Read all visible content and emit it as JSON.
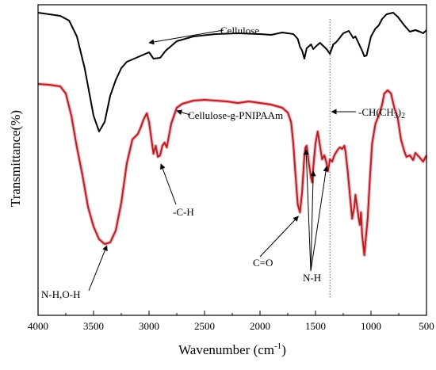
{
  "chart_data": {
    "type": "line",
    "title": "",
    "xlabel": "Wavenumber (cm",
    "xlabel_sup": "-1",
    "xlabel_end": ")",
    "ylabel": "Transmittance(%)",
    "xlim": [
      4000,
      500
    ],
    "x_reversed": true,
    "xticks": [
      "4000",
      "3500",
      "3000",
      "2500",
      "2000",
      "1500",
      "1000",
      "500"
    ],
    "grid": false,
    "reference_line": {
      "x": 1370,
      "style": "dotted"
    },
    "series": [
      {
        "name": "Cellulose",
        "color": "#000000",
        "points": [
          [
            4000,
            10
          ],
          [
            3900,
            12
          ],
          [
            3800,
            14
          ],
          [
            3720,
            20
          ],
          [
            3650,
            40
          ],
          [
            3580,
            80
          ],
          [
            3500,
            140
          ],
          [
            3450,
            160
          ],
          [
            3400,
            148
          ],
          [
            3350,
            115
          ],
          [
            3300,
            95
          ],
          [
            3250,
            80
          ],
          [
            3200,
            72
          ],
          [
            3100,
            66
          ],
          [
            3000,
            60
          ],
          [
            2960,
            68
          ],
          [
            2900,
            67
          ],
          [
            2850,
            58
          ],
          [
            2750,
            46
          ],
          [
            2600,
            40
          ],
          [
            2400,
            37
          ],
          [
            2200,
            36
          ],
          [
            2000,
            37
          ],
          [
            1900,
            38
          ],
          [
            1800,
            35
          ],
          [
            1700,
            37
          ],
          [
            1660,
            43
          ],
          [
            1640,
            53
          ],
          [
            1620,
            58
          ],
          [
            1600,
            68
          ],
          [
            1580,
            55
          ],
          [
            1540,
            50
          ],
          [
            1520,
            56
          ],
          [
            1500,
            53
          ],
          [
            1460,
            48
          ],
          [
            1430,
            52
          ],
          [
            1400,
            56
          ],
          [
            1370,
            62
          ],
          [
            1340,
            50
          ],
          [
            1320,
            48
          ],
          [
            1300,
            45
          ],
          [
            1250,
            36
          ],
          [
            1200,
            33
          ],
          [
            1160,
            42
          ],
          [
            1140,
            40
          ],
          [
            1120,
            46
          ],
          [
            1100,
            52
          ],
          [
            1080,
            58
          ],
          [
            1060,
            65
          ],
          [
            1040,
            64
          ],
          [
            1020,
            52
          ],
          [
            1000,
            40
          ],
          [
            960,
            30
          ],
          [
            930,
            26
          ],
          [
            900,
            18
          ],
          [
            860,
            12
          ],
          [
            800,
            10
          ],
          [
            760,
            15
          ],
          [
            700,
            26
          ],
          [
            650,
            34
          ],
          [
            600,
            32
          ],
          [
            560,
            34
          ],
          [
            530,
            36
          ],
          [
            500,
            32
          ]
        ]
      },
      {
        "name": "Cellulose-g-PNIPAAm",
        "color": "#b3221e",
        "halo": "#f2b8c6",
        "points": [
          [
            4000,
            100
          ],
          [
            3900,
            101
          ],
          [
            3800,
            103
          ],
          [
            3750,
            112
          ],
          [
            3700,
            140
          ],
          [
            3650,
            180
          ],
          [
            3600,
            215
          ],
          [
            3550,
            255
          ],
          [
            3500,
            280
          ],
          [
            3450,
            296
          ],
          [
            3400,
            302
          ],
          [
            3350,
            300
          ],
          [
            3300,
            285
          ],
          [
            3250,
            250
          ],
          [
            3200,
            200
          ],
          [
            3150,
            170
          ],
          [
            3100,
            163
          ],
          [
            3070,
            153
          ],
          [
            3050,
            145
          ],
          [
            3020,
            137
          ],
          [
            3000,
            148
          ],
          [
            2980,
            168
          ],
          [
            2960,
            188
          ],
          [
            2940,
            178
          ],
          [
            2920,
            192
          ],
          [
            2900,
            190
          ],
          [
            2880,
            178
          ],
          [
            2860,
            174
          ],
          [
            2840,
            180
          ],
          [
            2800,
            150
          ],
          [
            2750,
            130
          ],
          [
            2700,
            125
          ],
          [
            2600,
            121
          ],
          [
            2500,
            120
          ],
          [
            2400,
            121
          ],
          [
            2300,
            122
          ],
          [
            2200,
            124
          ],
          [
            2100,
            122
          ],
          [
            2000,
            124
          ],
          [
            1900,
            126
          ],
          [
            1800,
            130
          ],
          [
            1750,
            136
          ],
          [
            1720,
            148
          ],
          [
            1700,
            175
          ],
          [
            1680,
            215
          ],
          [
            1660,
            252
          ],
          [
            1640,
            262
          ],
          [
            1620,
            235
          ],
          [
            1600,
            190
          ],
          [
            1590,
            180
          ],
          [
            1580,
            178
          ],
          [
            1560,
            200
          ],
          [
            1540,
            218
          ],
          [
            1530,
            224
          ],
          [
            1520,
            205
          ],
          [
            1500,
            175
          ],
          [
            1480,
            160
          ],
          [
            1460,
            178
          ],
          [
            1440,
            195
          ],
          [
            1420,
            190
          ],
          [
            1400,
            200
          ],
          [
            1387,
            210
          ],
          [
            1370,
            195
          ],
          [
            1350,
            198
          ],
          [
            1330,
            190
          ],
          [
            1300,
            183
          ],
          [
            1280,
            180
          ],
          [
            1260,
            182
          ],
          [
            1240,
            178
          ],
          [
            1230,
            185
          ],
          [
            1210,
            210
          ],
          [
            1190,
            240
          ],
          [
            1170,
            270
          ],
          [
            1160,
            262
          ],
          [
            1150,
            255
          ],
          [
            1140,
            240
          ],
          [
            1130,
            250
          ],
          [
            1110,
            270
          ],
          [
            1100,
            278
          ],
          [
            1090,
            262
          ],
          [
            1080,
            290
          ],
          [
            1060,
            316
          ],
          [
            1050,
            300
          ],
          [
            1030,
            270
          ],
          [
            1010,
            220
          ],
          [
            990,
            175
          ],
          [
            960,
            150
          ],
          [
            930,
            140
          ],
          [
            900,
            126
          ],
          [
            880,
            112
          ],
          [
            850,
            108
          ],
          [
            820,
            112
          ],
          [
            790,
            130
          ],
          [
            760,
            142
          ],
          [
            730,
            170
          ],
          [
            700,
            185
          ],
          [
            680,
            192
          ],
          [
            650,
            190
          ],
          [
            620,
            196
          ],
          [
            600,
            187
          ],
          [
            560,
            193
          ],
          [
            530,
            198
          ],
          [
            500,
            190
          ]
        ]
      }
    ],
    "annotations": [
      {
        "text": "Cellulose",
        "arrow_x": 3000,
        "arrow_y": 40
      },
      {
        "text": "Cellulose-g-PNIPAAm",
        "arrow_x": 2750,
        "arrow_y": 128
      },
      {
        "text": "-CH(CH",
        "sub": "3",
        "end": ")",
        "sub2": "2",
        "arrow_x": 1370,
        "arrow_y": 100
      },
      {
        "text": "-C-H",
        "arrow_x": 2900,
        "arrow_y": 198
      },
      {
        "text": "N-H,O-H",
        "arrow_x": 3380,
        "arrow_y": 302
      },
      {
        "text": "C=O",
        "arrow_x": 1640,
        "arrow_y": 266
      },
      {
        "text": "N-H",
        "arrow_x": 1530,
        "arrow_y": 230
      }
    ]
  }
}
